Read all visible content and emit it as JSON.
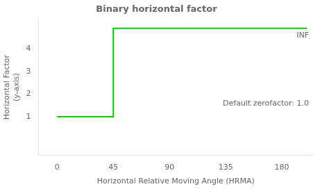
{
  "chart_data": {
    "type": "line",
    "title": "Binary horizontal factor",
    "xlabel": "Horizontal Relative Moving Angle (HRMA)",
    "ylabel": [
      "Horizontal Factor",
      "(y-axis)"
    ],
    "annotations": [
      "INF",
      "Default zerofactor: 1.0"
    ],
    "x": [
      0,
      45,
      45,
      200
    ],
    "series": [
      {
        "values": [
          1,
          1,
          4.9,
          4.9
        ],
        "color": "#00cc00"
      }
    ],
    "xlim": [
      -15,
      205
    ],
    "ylim": [
      -0.7,
      5.3
    ],
    "xticks": [
      0,
      45,
      90,
      135,
      180
    ],
    "yticks": [
      1,
      2,
      3,
      4
    ],
    "grid": false
  }
}
